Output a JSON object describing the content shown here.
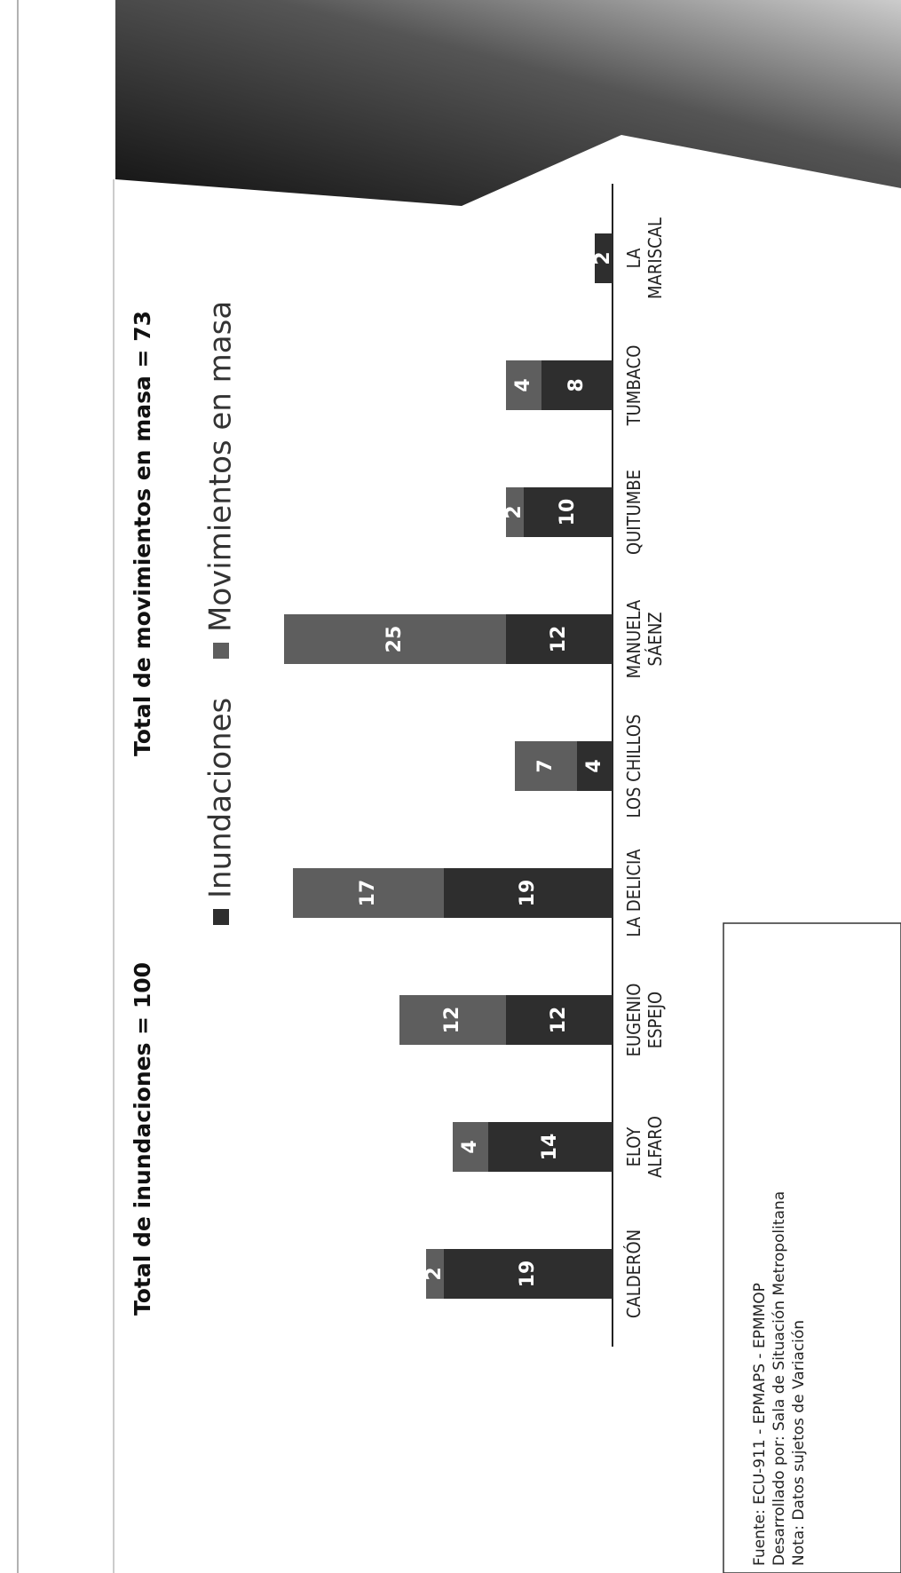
{
  "chart_data": {
    "type": "stacked_bar",
    "annotations": [
      "Total de inundaciones = 100",
      "Total de movimientos en masa = 73"
    ],
    "categories": [
      "CALDERÓN",
      "ELOY\nALFARO",
      "EUGENIO\nESPEJO",
      "LA DELICIA",
      "LOS CHILLOS",
      "MANUELA\nSÁENZ",
      "QUITUMBE",
      "TUMBACO",
      "LA\nMARISCAL"
    ],
    "series": [
      {
        "name": "Inundaciones",
        "color": "#2e2e2e",
        "values": [
          19,
          14,
          12,
          19,
          4,
          12,
          10,
          8,
          2
        ]
      },
      {
        "name": "Movimientos en masa",
        "color": "#5e5e5e",
        "values": [
          2,
          4,
          12,
          17,
          7,
          25,
          2,
          4,
          null
        ]
      }
    ],
    "ylim": [
      0,
      55
    ]
  },
  "footer": {
    "lines": [
      "Fuente: ECU-911 - EPMAPS - EPMMOP",
      "Desarrollado por: Sala de Situación Metropolitana",
      "Nota: Datos sujetos de Variación"
    ]
  }
}
